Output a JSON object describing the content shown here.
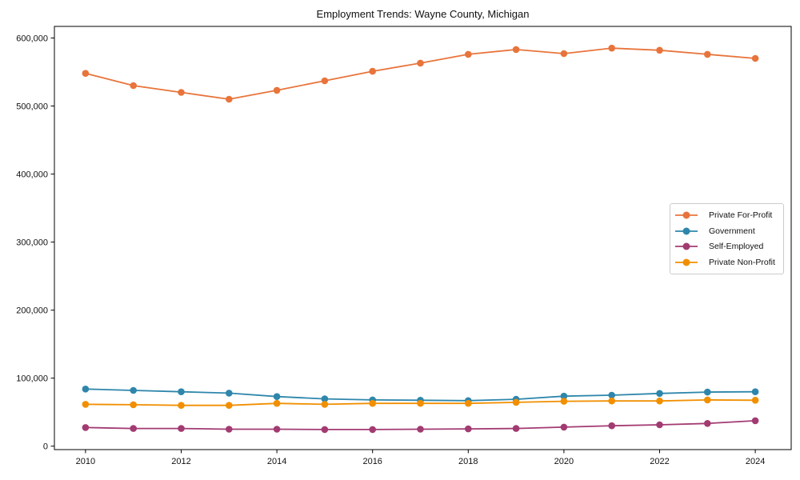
{
  "chart_data": {
    "type": "line",
    "title": "Employment Trends: Wayne County, Michigan",
    "xlabel": "",
    "ylabel": "",
    "grid": false,
    "legend_position": "center-right",
    "background_color": "#ffffff",
    "axis_color": "#000000",
    "tick_label_color": "#111111",
    "x_years": [
      2010,
      2011,
      2012,
      2013,
      2014,
      2015,
      2016,
      2017,
      2018,
      2019,
      2020,
      2021,
      2022,
      2023,
      2024
    ],
    "xlim": [
      2009.35,
      2024.75
    ],
    "ylim": [
      -5000,
      617000
    ],
    "xtick_values": [
      2010,
      2012,
      2014,
      2016,
      2018,
      2020,
      2022,
      2024
    ],
    "xtick_labels": [
      "2010",
      "2012",
      "2014",
      "2016",
      "2018",
      "2020",
      "2022",
      "2024"
    ],
    "ytick_values": [
      0,
      100000,
      200000,
      300000,
      400000,
      500000,
      600000
    ],
    "ytick_labels": [
      "0",
      "100,000",
      "200,000",
      "300,000",
      "400,000",
      "500,000",
      "600,000"
    ],
    "series": [
      {
        "name": "Private For-Profit",
        "color": "#E8743B",
        "values": [
          548000,
          530000,
          520000,
          510000,
          523000,
          537000,
          551000,
          563000,
          576000,
          583000,
          577000,
          585000,
          582000,
          576000,
          570000
        ]
      },
      {
        "name": "Government",
        "color": "#2E86AB",
        "values": [
          84000,
          82000,
          80000,
          78000,
          73000,
          69500,
          68000,
          67500,
          67000,
          69000,
          73500,
          75000,
          77500,
          79500,
          80000
        ]
      },
      {
        "name": "Self-Employed",
        "color": "#A23B72",
        "values": [
          27500,
          26000,
          26000,
          25000,
          25000,
          24500,
          24500,
          25000,
          25500,
          26000,
          28000,
          30000,
          31500,
          33500,
          37500
        ]
      },
      {
        "name": "Private Non-Profit",
        "color": "#F18F01",
        "values": [
          61500,
          61000,
          60000,
          60000,
          63000,
          61500,
          63000,
          63000,
          63000,
          64500,
          66000,
          66500,
          66500,
          68000,
          67500
        ]
      }
    ]
  }
}
